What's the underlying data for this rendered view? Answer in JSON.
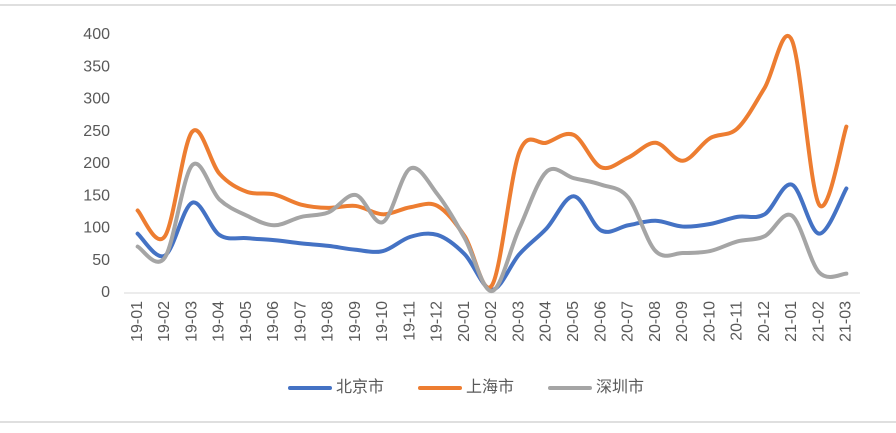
{
  "chart_data": {
    "type": "line",
    "categories": [
      "19-01",
      "19-02",
      "19-03",
      "19-04",
      "19-05",
      "19-06",
      "19-07",
      "19-08",
      "19-09",
      "19-10",
      "19-11",
      "19-12",
      "20-01",
      "20-02",
      "20-03",
      "20-04",
      "20-05",
      "20-06",
      "20-07",
      "20-08",
      "20-09",
      "20-10",
      "20-11",
      "20-12",
      "21-01",
      "21-02",
      "21-03"
    ],
    "series": [
      {
        "name": "北京市",
        "color": "#4472c4",
        "values": [
          92,
          58,
          140,
          90,
          85,
          82,
          77,
          73,
          67,
          65,
          87,
          90,
          60,
          5,
          60,
          100,
          150,
          97,
          105,
          112,
          103,
          107,
          118,
          122,
          168,
          92,
          162
        ]
      },
      {
        "name": "上海市",
        "color": "#ed7d31",
        "values": [
          128,
          88,
          250,
          185,
          157,
          153,
          137,
          132,
          135,
          122,
          133,
          135,
          88,
          12,
          218,
          233,
          245,
          195,
          210,
          233,
          205,
          240,
          255,
          318,
          392,
          137,
          258
        ]
      },
      {
        "name": "深圳市",
        "color": "#a5a5a5",
        "values": [
          72,
          55,
          198,
          145,
          120,
          105,
          118,
          125,
          152,
          110,
          193,
          153,
          85,
          3,
          100,
          188,
          178,
          168,
          148,
          65,
          62,
          65,
          80,
          88,
          120,
          32,
          30
        ]
      }
    ],
    "ylim": [
      0,
      400
    ],
    "yticks": [
      0,
      50,
      100,
      150,
      200,
      250,
      300,
      350,
      400
    ],
    "legend": "bottom"
  }
}
